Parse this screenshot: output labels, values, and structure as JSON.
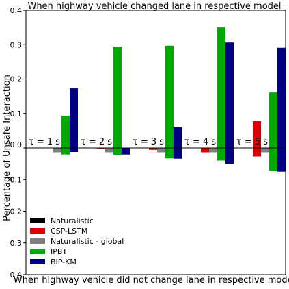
{
  "chart_data": {
    "type": "bar",
    "ylabel": "Percentage of Unsafe Interaction",
    "categories": [
      "τ = 1 s",
      "τ = 2 s",
      "τ = 3 s",
      "τ = 4 s",
      "τ = 5 s"
    ],
    "series_colors": [
      "#000000",
      "#dd0000",
      "#808080",
      "#00aa00",
      "#000080"
    ],
    "legend_position": "lower-left of bottom panel",
    "panels": [
      {
        "title": "When highway vehicle changed lane in respective model",
        "ylim": [
          0,
          0.4
        ],
        "yticks": [
          "0.0",
          "0.1",
          "0.2",
          "0.3",
          "0.4"
        ],
        "series": [
          {
            "name": "Naturalistic",
            "values": [
              0,
              0,
              0,
              0,
              0
            ]
          },
          {
            "name": "CSP-LSTM",
            "values": [
              0,
              0,
              0,
              0,
              0.078
            ]
          },
          {
            "name": "Naturalistic - global",
            "values": [
              0,
              0,
              0,
              0,
              0
            ]
          },
          {
            "name": "IPBT",
            "values": [
              0.093,
              0.294,
              0.297,
              0.35,
              0.161
            ]
          },
          {
            "name": "BIP-KM",
            "values": [
              0.173,
              0,
              0.06,
              0.306,
              0.291
            ]
          }
        ]
      },
      {
        "title": "When highway vehicle did not change lane in respective model",
        "ylim": [
          0,
          0.4
        ],
        "inverted": true,
        "yticks": [
          "0.0",
          "0.1",
          "0.2",
          "0.3",
          "0.4"
        ],
        "series": [
          {
            "name": "Naturalistic",
            "values": [
              0,
              0,
              0,
              0,
              0
            ]
          },
          {
            "name": "CSP-LSTM",
            "values": [
              0,
              0.002,
              0.006,
              0.014,
              0.027
            ]
          },
          {
            "name": "Naturalistic - global",
            "values": [
              0.014,
              0.014,
              0.014,
              0.014,
              0.014
            ]
          },
          {
            "name": "IPBT",
            "values": [
              0.021,
              0.022,
              0.033,
              0.04,
              0.072
            ]
          },
          {
            "name": "BIP-KM",
            "values": [
              0.013,
              0.021,
              0.034,
              0.05,
              0.075
            ]
          }
        ]
      }
    ]
  }
}
